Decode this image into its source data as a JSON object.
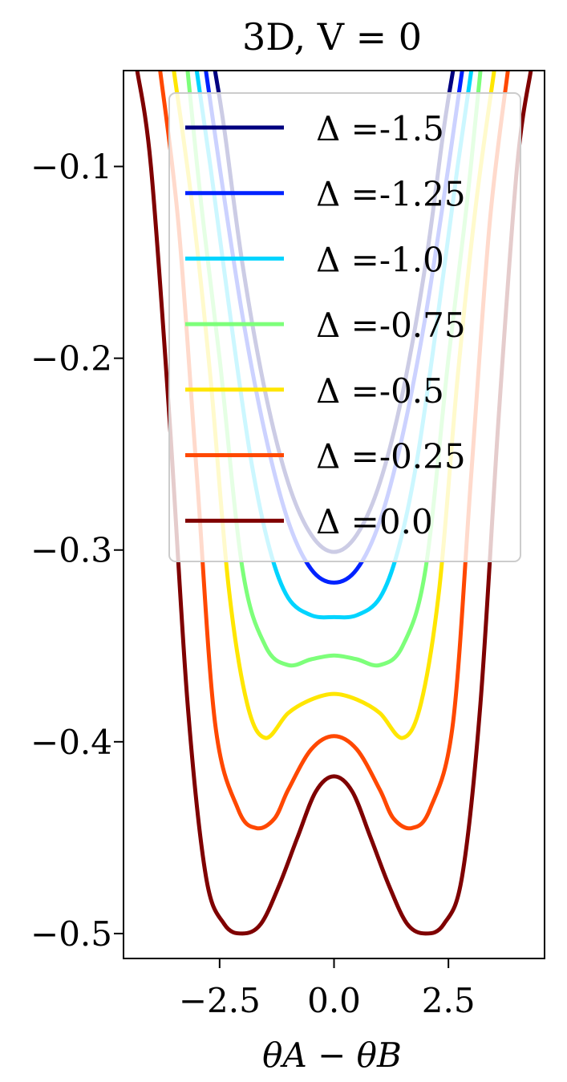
{
  "chart_data": {
    "type": "line",
    "title": "3D, V = 0",
    "xlabel": "θA − θB",
    "ylabel": "",
    "xlim": [
      -4.6,
      4.6
    ],
    "ylim": [
      -0.513,
      -0.05
    ],
    "x_ticks": [
      -2.5,
      0.0,
      2.5
    ],
    "x_tick_labels": [
      "−2.5",
      "0.0",
      "2.5"
    ],
    "y_ticks": [
      -0.1,
      -0.2,
      -0.3,
      -0.4,
      -0.5
    ],
    "y_tick_labels": [
      "−0.1",
      "−0.2",
      "−0.3",
      "−0.4",
      "−0.5"
    ],
    "grid": false,
    "legend_position": "top",
    "series": [
      {
        "name": "Δ =-1.5",
        "color": "#00007f",
        "x": [
          -2.6,
          -2.4,
          -2.0,
          -1.5,
          -1.0,
          -0.5,
          0.0,
          0.5,
          1.0,
          1.5,
          2.0,
          2.4,
          2.6
        ],
        "y": [
          -0.05,
          -0.08,
          -0.151,
          -0.218,
          -0.265,
          -0.292,
          -0.301,
          -0.292,
          -0.265,
          -0.218,
          -0.151,
          -0.08,
          -0.05
        ]
      },
      {
        "name": "Δ =-1.25",
        "color": "#0022ff",
        "x": [
          -2.8,
          -2.5,
          -2.0,
          -1.5,
          -1.0,
          -0.5,
          0.0,
          0.5,
          1.0,
          1.5,
          2.0,
          2.5,
          2.8
        ],
        "y": [
          -0.05,
          -0.1,
          -0.178,
          -0.24,
          -0.285,
          -0.31,
          -0.317,
          -0.31,
          -0.285,
          -0.24,
          -0.178,
          -0.1,
          -0.05
        ]
      },
      {
        "name": "Δ =-1.0",
        "color": "#00d4ff",
        "x": [
          -3.0,
          -2.7,
          -2.2,
          -1.8,
          -1.4,
          -1.0,
          -0.5,
          0.0,
          0.5,
          1.0,
          1.4,
          1.8,
          2.2,
          2.7,
          3.0
        ],
        "y": [
          -0.05,
          -0.1,
          -0.19,
          -0.255,
          -0.3,
          -0.325,
          -0.334,
          -0.335,
          -0.334,
          -0.325,
          -0.3,
          -0.255,
          -0.19,
          -0.1,
          -0.05
        ]
      },
      {
        "name": "Δ =-0.75",
        "color": "#7dff7a",
        "x": [
          -3.2,
          -2.9,
          -2.5,
          -2.0,
          -1.5,
          -1.0,
          -0.5,
          0.0,
          0.5,
          1.0,
          1.5,
          2.0,
          2.5,
          2.9,
          3.2
        ],
        "y": [
          -0.05,
          -0.12,
          -0.2,
          -0.31,
          -0.35,
          -0.36,
          -0.357,
          -0.355,
          -0.357,
          -0.36,
          -0.35,
          -0.31,
          -0.2,
          -0.12,
          -0.05
        ]
      },
      {
        "name": "Δ =-0.5",
        "color": "#ffe600",
        "x": [
          -3.5,
          -3.1,
          -2.7,
          -2.3,
          -1.9,
          -1.5,
          -1.0,
          -0.5,
          0.0,
          0.5,
          1.0,
          1.5,
          1.9,
          2.3,
          2.7,
          3.1,
          3.5
        ],
        "y": [
          -0.05,
          -0.12,
          -0.21,
          -0.32,
          -0.38,
          -0.398,
          -0.385,
          -0.378,
          -0.375,
          -0.378,
          -0.385,
          -0.398,
          -0.38,
          -0.32,
          -0.21,
          -0.12,
          -0.05
        ]
      },
      {
        "name": "Δ =-0.25",
        "color": "#ff4800",
        "x": [
          -3.8,
          -3.4,
          -3.0,
          -2.6,
          -2.1,
          -1.7,
          -1.3,
          -1.0,
          -0.5,
          0.0,
          0.5,
          1.0,
          1.3,
          1.7,
          2.1,
          2.6,
          3.0,
          3.4,
          3.8
        ],
        "y": [
          -0.05,
          -0.13,
          -0.26,
          -0.39,
          -0.435,
          -0.445,
          -0.44,
          -0.425,
          -0.404,
          -0.397,
          -0.404,
          -0.425,
          -0.44,
          -0.445,
          -0.435,
          -0.39,
          -0.26,
          -0.13,
          -0.05
        ]
      },
      {
        "name": "Δ =0.0",
        "color": "#7f0000",
        "x": [
          -4.3,
          -4.0,
          -3.6,
          -3.2,
          -2.8,
          -2.4,
          -2.0,
          -1.6,
          -1.2,
          -0.8,
          -0.4,
          0.0,
          0.4,
          0.8,
          1.2,
          1.6,
          2.0,
          2.4,
          2.8,
          3.2,
          3.6,
          4.0,
          4.3
        ],
        "y": [
          -0.05,
          -0.1,
          -0.23,
          -0.38,
          -0.47,
          -0.495,
          -0.5,
          -0.495,
          -0.475,
          -0.45,
          -0.426,
          -0.418,
          -0.426,
          -0.45,
          -0.475,
          -0.495,
          -0.5,
          -0.495,
          -0.47,
          -0.38,
          -0.23,
          -0.1,
          -0.05
        ]
      }
    ]
  }
}
